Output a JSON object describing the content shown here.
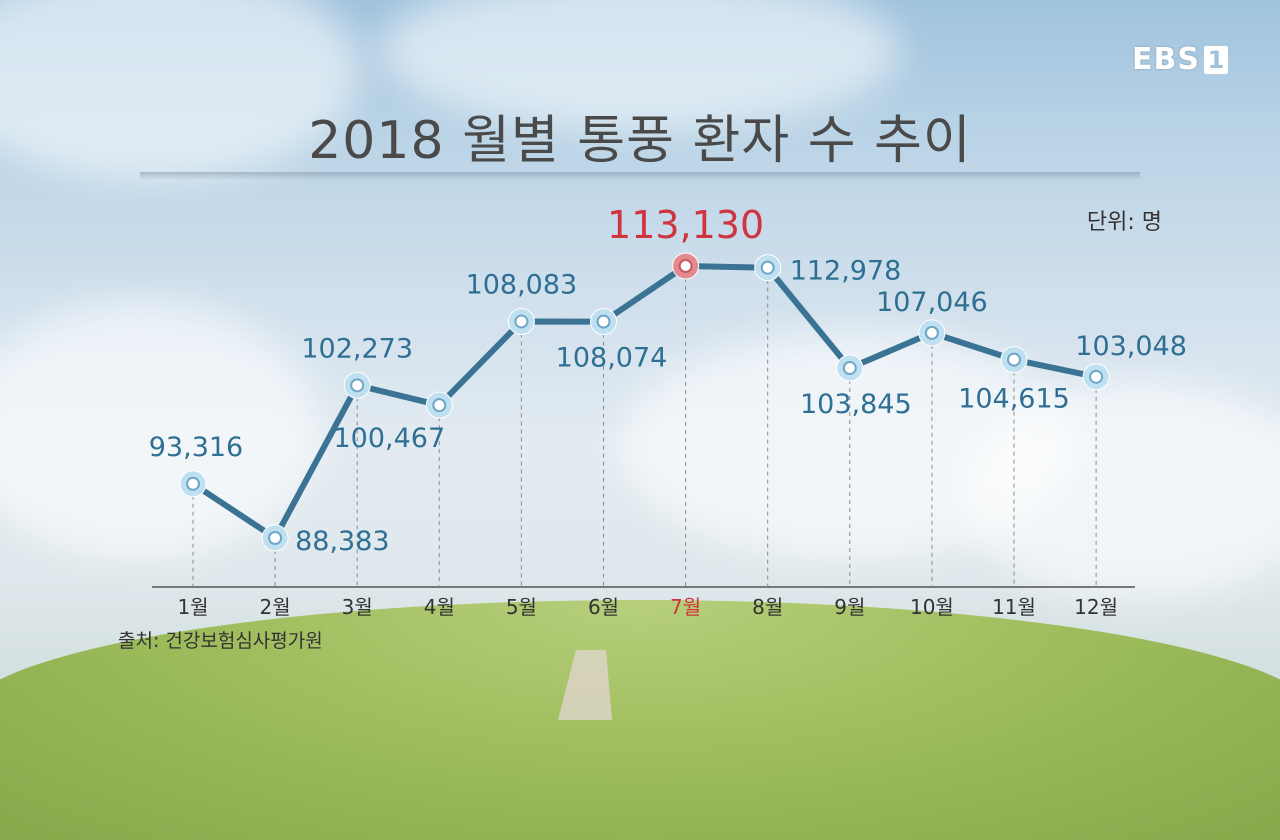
{
  "logo": {
    "text": "EBS",
    "number": "1"
  },
  "unit_label": "단위: 명",
  "source_label": "출처: 건강보험심사평가원",
  "colors": {
    "line": "#3a7394",
    "marker_fill": "#bfe0f0",
    "highlight": "#d0343f",
    "label": "#2f6f93"
  },
  "chart_data": {
    "type": "line",
    "title": "2018 월별 통풍 환자 수 추이",
    "xlabel": "",
    "ylabel": "",
    "unit": "명",
    "categories": [
      "1월",
      "2월",
      "3월",
      "4월",
      "5월",
      "6월",
      "7월",
      "8월",
      "9월",
      "10월",
      "11월",
      "12월"
    ],
    "values": [
      93316,
      88383,
      102273,
      100467,
      108083,
      108074,
      113130,
      112978,
      103845,
      107046,
      104615,
      103048
    ],
    "value_labels": [
      "93,316",
      "88,383",
      "102,273",
      "100,467",
      "108,083",
      "108,074",
      "113,130",
      "112,978",
      "103,845",
      "107,046",
      "104,615",
      "103,048"
    ],
    "highlight_index": 6,
    "grid": false,
    "legend": "none"
  }
}
